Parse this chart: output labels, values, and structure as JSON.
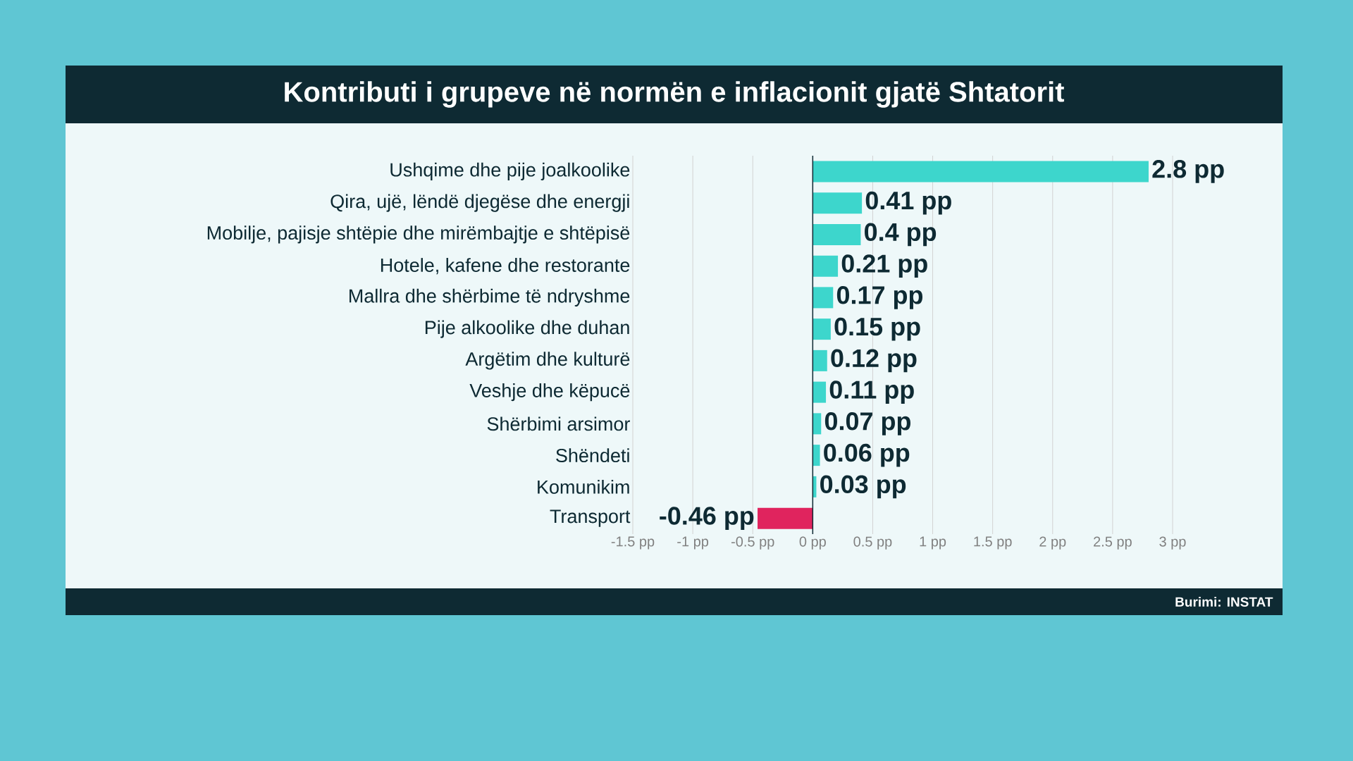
{
  "chart_data": {
    "type": "bar",
    "orientation": "horizontal",
    "title": "Kontributi i grupeve në normën e inflacionit gjatë Shtatorit",
    "categories": [
      "Ushqime dhe pije joalkoolike",
      "Qira, ujë, lëndë djegëse dhe energji",
      "Mobilje, pajisje shtëpie dhe mirëmbajtje e shtëpisë",
      "Hotele, kafene dhe restorante",
      "Mallra dhe shërbime të ndryshme",
      "Pije alkoolike dhe duhan",
      "Argëtim dhe kulturë",
      "Veshje dhe këpucë",
      "Shërbimi arsimor",
      "Shëndeti",
      "Komunikim",
      "Transport"
    ],
    "values": [
      2.8,
      0.41,
      0.4,
      0.21,
      0.17,
      0.15,
      0.12,
      0.11,
      0.07,
      0.06,
      0.03,
      -0.46
    ],
    "value_labels": [
      "2.8 pp",
      "0.41 pp",
      "0.4 pp",
      "0.21 pp",
      "0.17 pp",
      "0.15 pp",
      "0.12 pp",
      "0.11 pp",
      "0.07 pp",
      "0.06 pp",
      "0.03 pp",
      "-0.46 pp"
    ],
    "colors": [
      "#3dd6cc",
      "#3dd6cc",
      "#3dd6cc",
      "#3dd6cc",
      "#3dd6cc",
      "#3dd6cc",
      "#3dd6cc",
      "#3dd6cc",
      "#3dd6cc",
      "#3dd6cc",
      "#3dd6cc",
      "#e0245e"
    ],
    "xlim": [
      -1.5,
      3
    ],
    "xticks": [
      {
        "value": -1.5,
        "label": "-1.5 pp"
      },
      {
        "value": -1,
        "label": "-1 pp"
      },
      {
        "value": -0.5,
        "label": "-0.5 pp"
      },
      {
        "value": 0,
        "label": "0 pp"
      },
      {
        "value": 0.5,
        "label": "0.5 pp"
      },
      {
        "value": 1,
        "label": "1 pp"
      },
      {
        "value": 1.5,
        "label": "1.5 pp"
      },
      {
        "value": 2,
        "label": "2 pp"
      },
      {
        "value": 2.5,
        "label": "2.5 pp"
      },
      {
        "value": 3,
        "label": "3 pp"
      }
    ],
    "grid": "x",
    "annotations": [
      "Burimi: INSTAT"
    ]
  }
}
